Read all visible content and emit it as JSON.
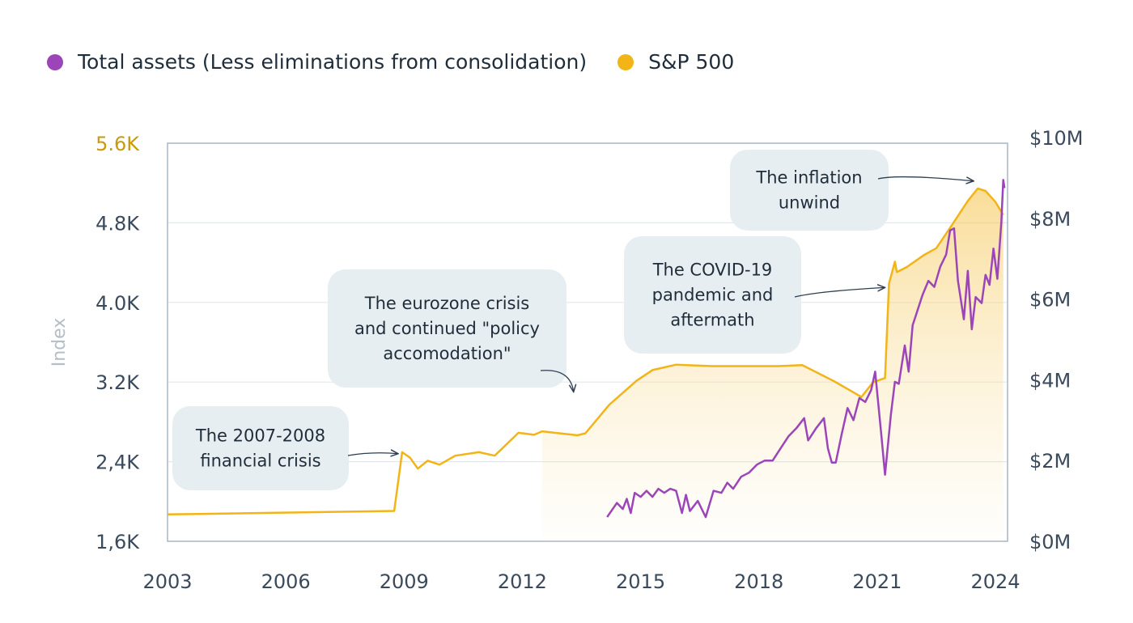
{
  "legend": {
    "items": [
      {
        "label": "Total assets (Less eliminations from consolidation)",
        "color": "#9b45b8"
      },
      {
        "label": "S&P 500",
        "color": "#f2b416"
      }
    ]
  },
  "chart_data": {
    "type": "line",
    "title": "",
    "xlabel": "",
    "ylabel": "Index",
    "xlim": [
      2003,
      2024.2
    ],
    "x_ticks": [
      "2003",
      "2006",
      "2009",
      "2012",
      "2015",
      "2018",
      "2021",
      "2024"
    ],
    "y_left": {
      "label": "Index",
      "lim": [
        1600,
        5600
      ],
      "ticks": [
        "1,6K",
        "2,4K",
        "3.2K",
        "4.0K",
        "4.8K",
        "5.6K"
      ],
      "tick_values": [
        1600,
        2400,
        3200,
        4000,
        4800,
        5600
      ]
    },
    "y_right": {
      "lim": [
        0,
        10
      ],
      "ticks": [
        "$0M",
        "$2M",
        "$4M",
        "$6M",
        "$8M",
        "$10M"
      ],
      "tick_values": [
        0,
        2,
        4,
        6,
        8,
        10
      ],
      "unit": "$M"
    },
    "grid": "horizontal",
    "legend_position": "top-left",
    "series": [
      {
        "name": "S&P 500",
        "axis": "left",
        "color": "#f2b416",
        "area_fill": true,
        "points": [
          [
            2003.0,
            1870
          ],
          [
            2008.75,
            1905
          ],
          [
            2008.95,
            2495
          ],
          [
            2009.15,
            2440
          ],
          [
            2009.35,
            2330
          ],
          [
            2009.6,
            2410
          ],
          [
            2009.9,
            2370
          ],
          [
            2010.3,
            2460
          ],
          [
            2010.9,
            2495
          ],
          [
            2011.3,
            2460
          ],
          [
            2011.9,
            2690
          ],
          [
            2012.3,
            2670
          ],
          [
            2012.5,
            2705
          ],
          [
            2013.4,
            2665
          ],
          [
            2013.6,
            2685
          ],
          [
            2014.2,
            2970
          ],
          [
            2014.9,
            3215
          ],
          [
            2015.3,
            3320
          ],
          [
            2015.9,
            3375
          ],
          [
            2016.8,
            3360
          ],
          [
            2018.5,
            3360
          ],
          [
            2019.1,
            3370
          ],
          [
            2019.9,
            3210
          ],
          [
            2020.6,
            3050
          ],
          [
            2020.9,
            3200
          ],
          [
            2021.2,
            3240
          ],
          [
            2021.3,
            4190
          ],
          [
            2021.45,
            4410
          ],
          [
            2021.5,
            4305
          ],
          [
            2021.75,
            4355
          ],
          [
            2022.2,
            4480
          ],
          [
            2022.5,
            4545
          ],
          [
            2022.9,
            4780
          ],
          [
            2023.3,
            5020
          ],
          [
            2023.55,
            5145
          ],
          [
            2023.75,
            5120
          ],
          [
            2024.0,
            5010
          ],
          [
            2024.2,
            4880
          ]
        ]
      },
      {
        "name": "Total assets (Less eliminations from consolidation)",
        "axis": "right",
        "color": "#9b45b8",
        "points": [
          [
            2014.15,
            0.6
          ],
          [
            2014.4,
            0.95
          ],
          [
            2014.55,
            0.8
          ],
          [
            2014.65,
            1.05
          ],
          [
            2014.75,
            0.7
          ],
          [
            2014.85,
            1.2
          ],
          [
            2015.0,
            1.1
          ],
          [
            2015.15,
            1.25
          ],
          [
            2015.3,
            1.1
          ],
          [
            2015.45,
            1.3
          ],
          [
            2015.6,
            1.2
          ],
          [
            2015.75,
            1.3
          ],
          [
            2015.9,
            1.25
          ],
          [
            2016.05,
            0.7
          ],
          [
            2016.15,
            1.15
          ],
          [
            2016.25,
            0.75
          ],
          [
            2016.45,
            1.0
          ],
          [
            2016.65,
            0.6
          ],
          [
            2016.85,
            1.25
          ],
          [
            2017.05,
            1.2
          ],
          [
            2017.2,
            1.45
          ],
          [
            2017.35,
            1.3
          ],
          [
            2017.55,
            1.6
          ],
          [
            2017.75,
            1.7
          ],
          [
            2017.95,
            1.9
          ],
          [
            2018.15,
            2.0
          ],
          [
            2018.35,
            2.0
          ],
          [
            2018.55,
            2.3
          ],
          [
            2018.75,
            2.6
          ],
          [
            2018.95,
            2.8
          ],
          [
            2019.15,
            3.05
          ],
          [
            2019.25,
            2.5
          ],
          [
            2019.45,
            2.8
          ],
          [
            2019.65,
            3.05
          ],
          [
            2019.75,
            2.3
          ],
          [
            2019.85,
            1.95
          ],
          [
            2019.95,
            1.95
          ],
          [
            2020.1,
            2.65
          ],
          [
            2020.25,
            3.3
          ],
          [
            2020.4,
            3.0
          ],
          [
            2020.55,
            3.55
          ],
          [
            2020.7,
            3.45
          ],
          [
            2020.85,
            3.75
          ],
          [
            2020.95,
            4.2
          ],
          [
            2021.1,
            2.7
          ],
          [
            2021.2,
            1.65
          ],
          [
            2021.35,
            3.15
          ],
          [
            2021.45,
            3.95
          ],
          [
            2021.55,
            3.9
          ],
          [
            2021.7,
            4.85
          ],
          [
            2021.8,
            4.2
          ],
          [
            2021.9,
            5.35
          ],
          [
            2022.0,
            5.65
          ],
          [
            2022.15,
            6.1
          ],
          [
            2022.3,
            6.45
          ],
          [
            2022.45,
            6.3
          ],
          [
            2022.6,
            6.8
          ],
          [
            2022.75,
            7.1
          ],
          [
            2022.85,
            7.7
          ],
          [
            2022.95,
            7.75
          ],
          [
            2023.05,
            6.45
          ],
          [
            2023.2,
            5.5
          ],
          [
            2023.3,
            6.7
          ],
          [
            2023.4,
            5.25
          ],
          [
            2023.5,
            6.05
          ],
          [
            2023.65,
            5.9
          ],
          [
            2023.75,
            6.6
          ],
          [
            2023.85,
            6.35
          ],
          [
            2023.95,
            7.25
          ],
          [
            2024.05,
            6.5
          ],
          [
            2024.15,
            7.9
          ],
          [
            2024.2,
            8.95
          ],
          [
            2024.23,
            8.75
          ]
        ]
      }
    ],
    "annotations": [
      {
        "text": [
          "The 2007-2008",
          "financial crisis"
        ],
        "target": [
          2008.85,
          2480
        ]
      },
      {
        "text": [
          "The eurozone crisis",
          "and continued \"policy",
          "accomodation\""
        ],
        "target": [
          2013.3,
          3100
        ]
      },
      {
        "text": [
          "The COVID-19",
          "pandemic and",
          "aftermath"
        ],
        "target": [
          2021.2,
          4150
        ]
      },
      {
        "text": [
          "The inflation",
          "unwind"
        ],
        "target": [
          2023.45,
          5220
        ]
      }
    ]
  }
}
